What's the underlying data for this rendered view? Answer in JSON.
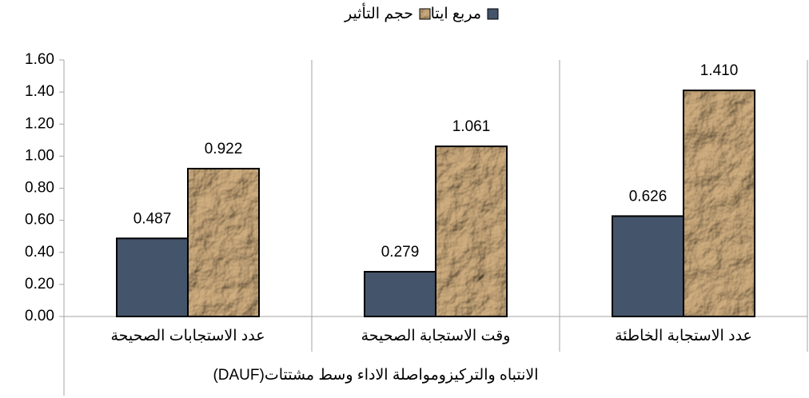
{
  "chart_data": {
    "type": "bar",
    "categories": [
      "عدد الاستجابات الصحيحة",
      "وقت الاستجابة الصحيحة",
      "عدد الاستجابة الخاطئة"
    ],
    "group_label": "الانتباه والتركيزومواصلة الاداء وسط مشتتات(DAUF)",
    "series": [
      {
        "name": "مربع ايتا",
        "color": "#44546a",
        "values": [
          0.487,
          0.279,
          0.626
        ],
        "value_labels": [
          "0.487",
          "0.279",
          "0.626"
        ]
      },
      {
        "name": "حجم التأثير",
        "color": "#c8a77a",
        "texture": "crumpled paper",
        "values": [
          0.922,
          1.061,
          1.41
        ],
        "value_labels": [
          "0.922",
          "1.061",
          "1.410"
        ]
      }
    ],
    "ylim": [
      0,
      1.6
    ],
    "yticks": [
      {
        "value": 0,
        "label": "0.00"
      },
      {
        "value": 0.2,
        "label": "0.20"
      },
      {
        "value": 0.4,
        "label": "0.40"
      },
      {
        "value": 0.6,
        "label": "0.60"
      },
      {
        "value": 0.8,
        "label": "0.80"
      },
      {
        "value": 1,
        "label": "1.00"
      },
      {
        "value": 1.2,
        "label": "1.20"
      },
      {
        "value": 1.4,
        "label": "1.40"
      },
      {
        "value": 1.6,
        "label": "1.60"
      }
    ],
    "legend": "top"
  }
}
